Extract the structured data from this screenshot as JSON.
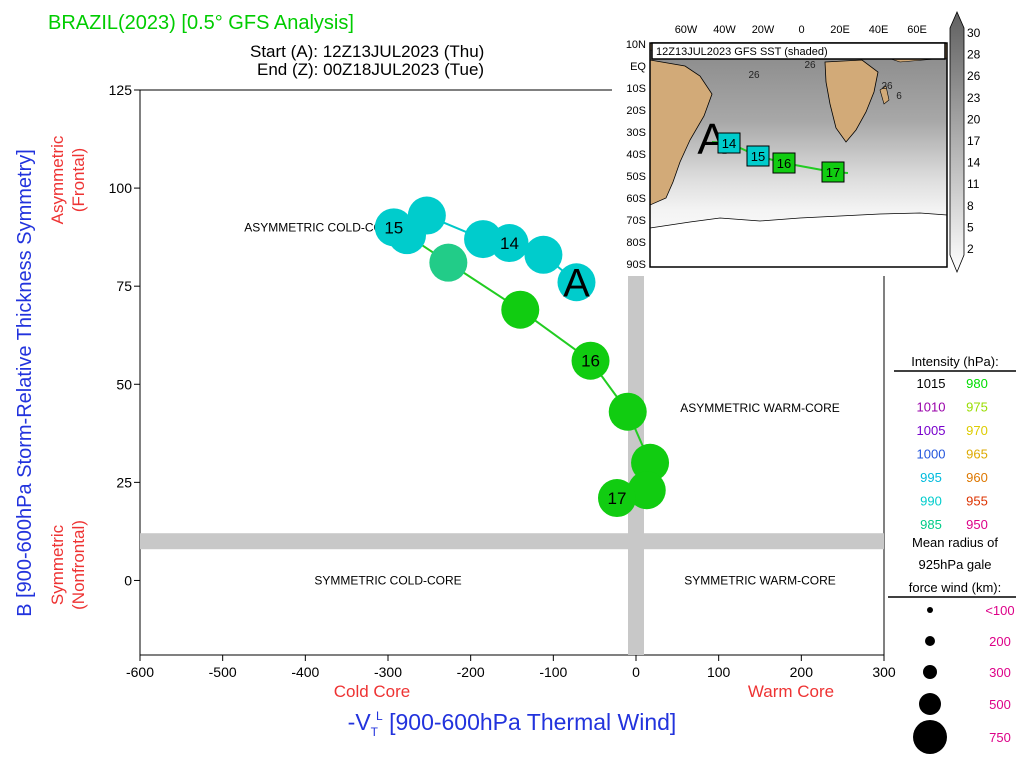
{
  "header": {
    "title": "BRAZIL(2023) [0.5° GFS Analysis]",
    "start": "Start (A): 12Z13JUL2023 (Thu)",
    "end": "End (Z): 00Z18JUL2023 (Tue)"
  },
  "colors": {
    "title": "#00cc00",
    "axis_blue": "#2233dd",
    "axis_red": "#ee3333",
    "quadrant_bar": "#c8c8c8",
    "track_line_cyan": "#00c8c8",
    "track_line_green": "#22cc22"
  },
  "chart_data": {
    "type": "scatter",
    "xlabel": "-V<sub>T</sub><sup>L</sup> [900-600hPa Thermal Wind]",
    "xlabel_main": "-V",
    "xlabel_sub": "T",
    "xlabel_sup": "L",
    "xlabel_tail": " [900-600hPa Thermal Wind]",
    "ylabel": "B [900-600hPa Storm-Relative Thickness Symmetry]",
    "x_left_label": "Cold Core",
    "x_right_label": "Warm Core",
    "y_top_label_1": "Asymmetric",
    "y_top_label_2": "(Frontal)",
    "y_bottom_label_1": "Symmetric",
    "y_bottom_label_2": "(Nonfrontal)",
    "xlim": [
      -600,
      300
    ],
    "ylim": [
      -19,
      125
    ],
    "xticks": [
      -600,
      -500,
      -400,
      -300,
      -200,
      -100,
      0,
      100,
      200,
      300
    ],
    "yticks": [
      0,
      25,
      50,
      75,
      100,
      125
    ],
    "quadrants": [
      {
        "label": "ASYMMETRIC COLD-CORE",
        "x": -380,
        "y": 90
      },
      {
        "label": "ASYMMETRIC WARM-CORE",
        "x": 150,
        "y": 44
      },
      {
        "label": "SYMMETRIC COLD-CORE",
        "x": -300,
        "y": 0
      },
      {
        "label": "SYMMETRIC WARM-CORE",
        "x": 150,
        "y": 0
      }
    ],
    "track": [
      {
        "x": -72,
        "y": 76,
        "color": "#00cccc",
        "label": "A"
      },
      {
        "x": -112,
        "y": 83,
        "color": "#00cccc",
        "label": ""
      },
      {
        "x": -153,
        "y": 86,
        "color": "#00cccc",
        "label": "14"
      },
      {
        "x": -185,
        "y": 87,
        "color": "#00cccc",
        "label": ""
      },
      {
        "x": -253,
        "y": 93,
        "color": "#00cccc",
        "label": ""
      },
      {
        "x": -293,
        "y": 90,
        "color": "#00cccc",
        "label": "15"
      },
      {
        "x": -277,
        "y": 88,
        "color": "#00cccc",
        "label": ""
      },
      {
        "x": -227,
        "y": 81,
        "color": "#22cc88",
        "label": ""
      },
      {
        "x": -140,
        "y": 69,
        "color": "#11cc11",
        "label": ""
      },
      {
        "x": -55,
        "y": 56,
        "color": "#11cc11",
        "label": "16"
      },
      {
        "x": -10,
        "y": 43,
        "color": "#11cc11",
        "label": ""
      },
      {
        "x": 17,
        "y": 30,
        "color": "#11cc11",
        "label": ""
      },
      {
        "x": 13,
        "y": 23,
        "color": "#11cc11",
        "label": ""
      },
      {
        "x": -23,
        "y": 21,
        "color": "#11cc11",
        "label": "17"
      }
    ]
  },
  "inset": {
    "title": "12Z13JUL2023 GFS SST (shaded)",
    "lon_labels": [
      "60W",
      "40W",
      "20W",
      "0",
      "20E",
      "40E",
      "60E"
    ],
    "lat_labels": [
      "10N",
      "EQ",
      "10S",
      "20S",
      "30S",
      "40S",
      "50S",
      "60S",
      "70S",
      "80S",
      "90S"
    ],
    "sst_labels": [
      "26",
      "26",
      "26",
      "6"
    ],
    "track_labels": [
      {
        "label": "A",
        "color": "#00cccc"
      },
      {
        "label": "14",
        "color": "#00cccc"
      },
      {
        "label": "15",
        "color": "#00cccc"
      },
      {
        "label": "16",
        "color": "#11cc11"
      },
      {
        "label": "17",
        "color": "#11cc11"
      }
    ],
    "colorbar_values": [
      "30",
      "28",
      "26",
      "23",
      "20",
      "17",
      "14",
      "11",
      "8",
      "5",
      "2"
    ]
  },
  "legend": {
    "intensity_title": "Intensity (hPa):",
    "intensity": [
      {
        "label": "1015",
        "color": "#000000"
      },
      {
        "label": "980",
        "color": "#00dd00"
      },
      {
        "label": "1010",
        "color": "#9900aa"
      },
      {
        "label": "975",
        "color": "#99dd00"
      },
      {
        "label": "1005",
        "color": "#7700cc"
      },
      {
        "label": "970",
        "color": "#ddcc00"
      },
      {
        "label": "1000",
        "color": "#2255dd"
      },
      {
        "label": "965",
        "color": "#ddaa00"
      },
      {
        "label": "995",
        "color": "#00bbdd"
      },
      {
        "label": "960",
        "color": "#dd7700"
      },
      {
        "label": "990",
        "color": "#00cccc"
      },
      {
        "label": "955",
        "color": "#dd3300"
      },
      {
        "label": "985",
        "color": "#00cc88"
      },
      {
        "label": "950",
        "color": "#dd0088"
      }
    ],
    "radius_title_1": "Mean radius of",
    "radius_title_2": "925hPa gale",
    "radius_title_3": "force wind (km):",
    "radius": [
      {
        "label": "<100",
        "r": 3
      },
      {
        "label": "200",
        "r": 5
      },
      {
        "label": "300",
        "r": 7
      },
      {
        "label": "500",
        "r": 11
      },
      {
        "label": "750",
        "r": 17
      }
    ],
    "radius_label_color": "#dd0088"
  }
}
